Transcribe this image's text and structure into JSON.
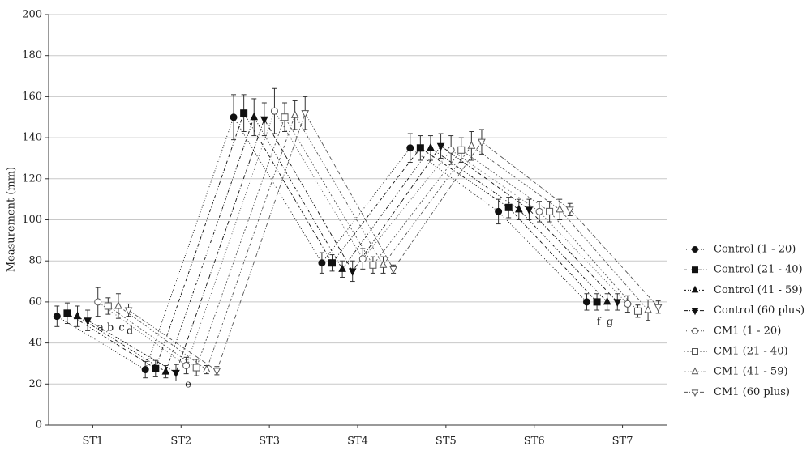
{
  "chart_data": {
    "type": "line",
    "y_label": "Measurement (mm)",
    "categories": [
      "ST1",
      "ST2",
      "ST3",
      "ST4",
      "ST5",
      "ST6",
      "ST7"
    ],
    "ylim": [
      0,
      200
    ],
    "yticks": [
      0,
      20,
      40,
      60,
      80,
      100,
      120,
      140,
      160,
      180,
      200
    ],
    "grid": true,
    "legend": "right",
    "series": [
      {
        "name": "Control (1 - 20)",
        "color": "#111111",
        "marker": "circle",
        "filled": true,
        "values": [
          53,
          27,
          150,
          79,
          135,
          104,
          60
        ],
        "errors": [
          5,
          4,
          11,
          5,
          7,
          6,
          4
        ]
      },
      {
        "name": "Control (21 - 40)",
        "color": "#111111",
        "marker": "square",
        "filled": true,
        "values": [
          54.5,
          27.5,
          152,
          79,
          135,
          106,
          60
        ],
        "errors": [
          5,
          4,
          9,
          4,
          6,
          5,
          4
        ]
      },
      {
        "name": "Control (41 - 59)",
        "color": "#111111",
        "marker": "triangle-up",
        "filled": true,
        "values": [
          53,
          26,
          150,
          76,
          135,
          105,
          60
        ],
        "errors": [
          5,
          3,
          9,
          4,
          6,
          5,
          4
        ]
      },
      {
        "name": "Control (60 plus)",
        "color": "#111111",
        "marker": "triangle-down",
        "filled": true,
        "values": [
          51,
          25.5,
          149,
          75,
          136,
          105,
          60
        ],
        "errors": [
          5,
          4,
          8,
          5,
          6,
          5,
          4
        ]
      },
      {
        "name": "CM1 (1 - 20)",
        "color": "#555555",
        "marker": "circle",
        "filled": false,
        "values": [
          60,
          29,
          153,
          81,
          134,
          104,
          59
        ],
        "errors": [
          7,
          4,
          11,
          5,
          7,
          5,
          4
        ]
      },
      {
        "name": "CM1 (21 - 40)",
        "color": "#555555",
        "marker": "square",
        "filled": false,
        "values": [
          58,
          28,
          150,
          78,
          134,
          104,
          55.5
        ],
        "errors": [
          4,
          4,
          7,
          4,
          6,
          5,
          3
        ]
      },
      {
        "name": "CM1 (41 - 59)",
        "color": "#555555",
        "marker": "triangle-up",
        "filled": false,
        "values": [
          58,
          27,
          151,
          78,
          136,
          105,
          56
        ],
        "errors": [
          6,
          2,
          7,
          4,
          7,
          5,
          5
        ]
      },
      {
        "name": "CM1 (60 plus)",
        "color": "#555555",
        "marker": "triangle-down",
        "filled": false,
        "values": [
          56,
          26.5,
          152,
          76,
          138,
          105,
          57.5
        ],
        "errors": [
          3,
          2,
          8,
          2,
          6,
          3,
          3
        ]
      }
    ],
    "annotations": [
      "a",
      "b",
      "c",
      "d",
      "e",
      "f",
      "g"
    ]
  }
}
